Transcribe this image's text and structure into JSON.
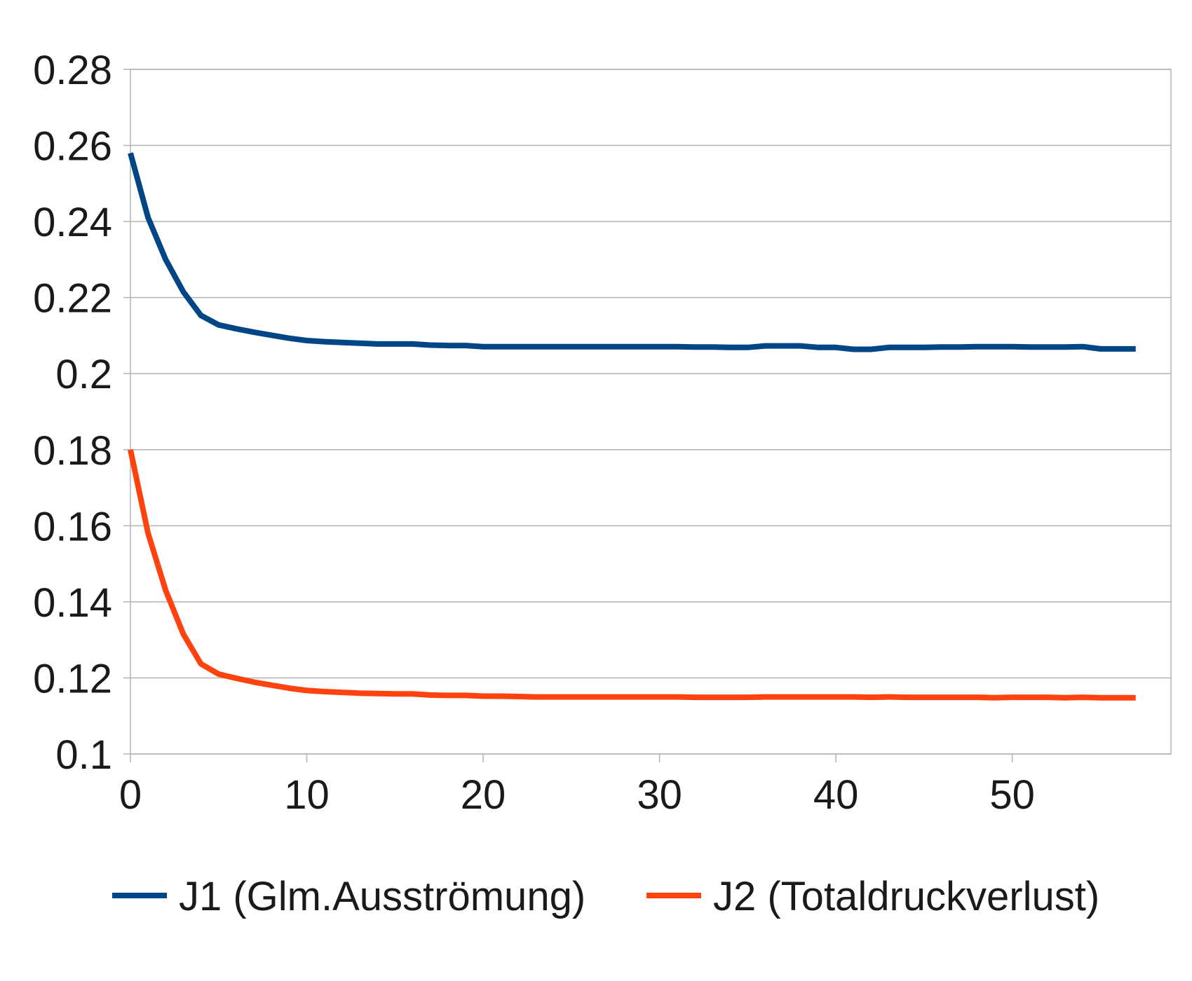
{
  "chart_data": {
    "type": "line",
    "title": "",
    "xlabel": "",
    "ylabel": "",
    "xlim": [
      0,
      59
    ],
    "ylim": [
      0.1,
      0.28
    ],
    "xticks": [
      "0",
      "10",
      "20",
      "30",
      "40",
      "50"
    ],
    "yticks": [
      "0.28",
      "0.26",
      "0.24",
      "0.22",
      "0.2",
      "0.18",
      "0.16",
      "0.14",
      "0.12",
      "0.1"
    ],
    "grid": true,
    "legend_position": "bottom",
    "x": [
      0,
      1,
      2,
      3,
      4,
      5,
      6,
      7,
      8,
      9,
      10,
      11,
      12,
      13,
      14,
      15,
      16,
      17,
      18,
      19,
      20,
      21,
      22,
      23,
      24,
      25,
      26,
      27,
      28,
      29,
      30,
      31,
      32,
      33,
      34,
      35,
      36,
      37,
      38,
      39,
      40,
      41,
      42,
      43,
      44,
      45,
      46,
      47,
      48,
      49,
      50,
      51,
      52,
      53,
      54,
      55,
      56,
      57
    ],
    "series": [
      {
        "name": "J1 (Glm.Ausströmung)",
        "color": "#004586",
        "values": [
          0.258,
          0.241,
          0.23,
          0.2215,
          0.2153,
          0.2128,
          0.2118,
          0.2109,
          0.2101,
          0.2093,
          0.2087,
          0.2084,
          0.2082,
          0.208,
          0.2078,
          0.2078,
          0.2078,
          0.2075,
          0.2074,
          0.2074,
          0.2071,
          0.2071,
          0.2071,
          0.2071,
          0.2071,
          0.2071,
          0.2071,
          0.2071,
          0.2071,
          0.2071,
          0.2071,
          0.2071,
          0.207,
          0.207,
          0.2069,
          0.2069,
          0.2073,
          0.2073,
          0.2073,
          0.2069,
          0.2069,
          0.2064,
          0.2064,
          0.2069,
          0.2069,
          0.2069,
          0.207,
          0.207,
          0.2071,
          0.2071,
          0.2071,
          0.207,
          0.207,
          0.207,
          0.2071,
          0.2065,
          0.2065,
          0.2065
        ]
      },
      {
        "name": "J2 (Totaldruckverlust)",
        "color": "#ff420e",
        "values": [
          0.18,
          0.158,
          0.143,
          0.1315,
          0.1237,
          0.121,
          0.1199,
          0.1189,
          0.1181,
          0.1173,
          0.1167,
          0.1164,
          0.1162,
          0.116,
          0.1159,
          0.1158,
          0.1158,
          0.1155,
          0.1154,
          0.1154,
          0.1152,
          0.1152,
          0.1151,
          0.115,
          0.115,
          0.115,
          0.115,
          0.115,
          0.115,
          0.115,
          0.115,
          0.115,
          0.1149,
          0.1149,
          0.1149,
          0.1149,
          0.115,
          0.115,
          0.115,
          0.115,
          0.115,
          0.115,
          0.1149,
          0.115,
          0.1149,
          0.1149,
          0.1149,
          0.1149,
          0.1149,
          0.1148,
          0.1149,
          0.1149,
          0.1149,
          0.1148,
          0.1149,
          0.1148,
          0.1148,
          0.1148
        ]
      }
    ]
  }
}
